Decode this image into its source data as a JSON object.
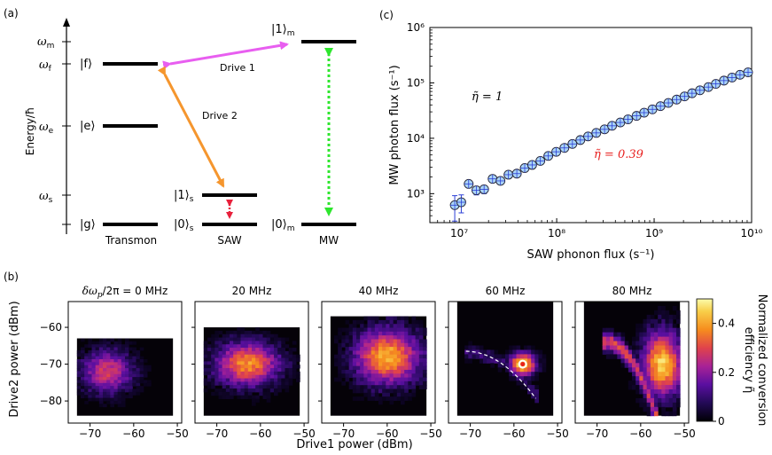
{
  "panel_a": {
    "label": "(a)",
    "y_axis_label": "Energy/ħ",
    "levels": {
      "omega_m": "ω",
      "omega_m_sub": "m",
      "omega_f": "ω",
      "omega_f_sub": "f",
      "omega_e": "ω",
      "omega_e_sub": "e",
      "omega_s": "ω",
      "omega_s_sub": "s"
    },
    "states": {
      "f": "|f⟩",
      "e": "|e⟩",
      "g": "|g⟩",
      "one_s": "|1⟩",
      "one_s_sub": "s",
      "zero_s": "|0⟩",
      "zero_s_sub": "s",
      "one_m": "|1⟩",
      "one_m_sub": "m",
      "zero_m": "|0⟩",
      "zero_m_sub": "m"
    },
    "column_labels": [
      "Transmon",
      "SAW",
      "MW"
    ],
    "drive1_label": "Drive 1",
    "drive2_label": "Drive 2",
    "colors": {
      "drive1": "#e85ef0",
      "drive2": "#f5962e",
      "mw_link": "#2ee62e",
      "saw_link": "#e8203c"
    }
  },
  "panel_c": {
    "label": "(c)",
    "chart_data": {
      "type": "scatter",
      "xscale": "log",
      "yscale": "log",
      "xlim": [
        5000000.0,
        10000000000.0
      ],
      "ylim": [
        300.0,
        1000000.0
      ],
      "xlabel": "SAW phonon flux (s⁻¹)",
      "ylabel": "MW photon flux (s⁻¹)",
      "x_tick_labels": [
        "10⁷",
        "10⁸",
        "10⁹",
        "10¹⁰"
      ],
      "y_tick_labels": [
        "10³",
        "10⁴",
        "10⁵",
        "10⁶"
      ],
      "lines": [
        {
          "name": "η̃ = 1",
          "label_text": "η̃ = 1",
          "eta": 1.0,
          "color": "#000000"
        },
        {
          "name": "η̃ = 0.39",
          "label_text": "η̃ = 0.39",
          "eta": 0.39,
          "color": "#e8201f"
        }
      ],
      "series": [
        {
          "name": "measured",
          "x": [
            9000000.0,
            10500000.0,
            12500000.0,
            15000000.0,
            18000000.0,
            22000000.0,
            26500000.0,
            32000000.0,
            39000000.0,
            47000000.0,
            56000000.0,
            68000000.0,
            82000000.0,
            99000000.0,
            120000000.0,
            145000000.0,
            175000000.0,
            210000000.0,
            255000000.0,
            310000000.0,
            370000000.0,
            450000000.0,
            540000000.0,
            660000000.0,
            790000000.0,
            960000000.0,
            1160000000.0,
            1400000000.0,
            1700000000.0,
            2050000000.0,
            2450000000.0,
            2950000000.0,
            3600000000.0,
            4300000000.0,
            5200000000.0,
            6300000000.0,
            7600000000.0,
            9200000000.0
          ],
          "y": [
            620,
            700,
            1500,
            1150,
            1200,
            1850,
            1700,
            2200,
            2300,
            2900,
            3300,
            3900,
            4800,
            5700,
            6700,
            7900,
            9300,
            10800,
            12500,
            14500,
            16800,
            19300,
            22000,
            25400,
            29000,
            33300,
            38000,
            43500,
            50000,
            57000,
            65000,
            73500,
            84000,
            96000,
            110000,
            125000,
            140000,
            155000
          ],
          "yerr": [
            300,
            250,
            0,
            200,
            200,
            0,
            0,
            0,
            0,
            0,
            0,
            0,
            0,
            0,
            0,
            0,
            0,
            0,
            0,
            0,
            0,
            0,
            0,
            0,
            0,
            0,
            0,
            0,
            0,
            0,
            0,
            0,
            0,
            0,
            0,
            0,
            0,
            0
          ]
        }
      ]
    }
  },
  "panel_b": {
    "label": "(b)",
    "chart_data": {
      "type": "heatmap",
      "xlabel": "Drive1 power (dBm)",
      "ylabel": "Drive2 power (dBm)",
      "x_tick_labels": [
        "−70",
        "−60",
        "−50"
      ],
      "y_tick_labels": [
        "−60",
        "−70",
        "−80"
      ],
      "xlim": [
        -75,
        -49
      ],
      "ylim": [
        -86,
        -53
      ],
      "colorbar": {
        "label": "Normalized conversion efficiency η̃",
        "label_line1": "Normalized conversion",
        "label_line2": "efficiency η̃",
        "range": [
          0,
          0.5
        ],
        "tick_labels": [
          "0",
          "0.2",
          "0.4"
        ]
      },
      "panels": [
        {
          "title": "δωp/2π = 0 MHz",
          "title_main": "δω",
          "title_sub": "p",
          "title_rest": "/2π = 0 MHz",
          "ymax": -63,
          "blob": {
            "x": -66,
            "y": -72,
            "sx": 4,
            "sy": 4,
            "amp": 0.28
          }
        },
        {
          "title": "20 MHz",
          "ymax": -60,
          "blob": {
            "x": -63,
            "y": -70,
            "sx": 5,
            "sy": 4,
            "amp": 0.38
          }
        },
        {
          "title": "40 MHz",
          "ymax": -57,
          "blob": {
            "x": -60,
            "y": -68,
            "sx": 5,
            "sy": 5,
            "amp": 0.42
          }
        },
        {
          "title": "60 MHz",
          "ymax": -53,
          "blob": {
            "x": -58,
            "y": -70,
            "sx": 2,
            "sy": 2,
            "amp": 0.5
          },
          "marker": {
            "x": -58,
            "y": -70
          }
        },
        {
          "title": "80 MHz",
          "ymax": -53,
          "blob": {
            "x": -55,
            "y": -70,
            "sx": 3,
            "sy": 6,
            "amp": 0.45
          }
        }
      ]
    }
  }
}
